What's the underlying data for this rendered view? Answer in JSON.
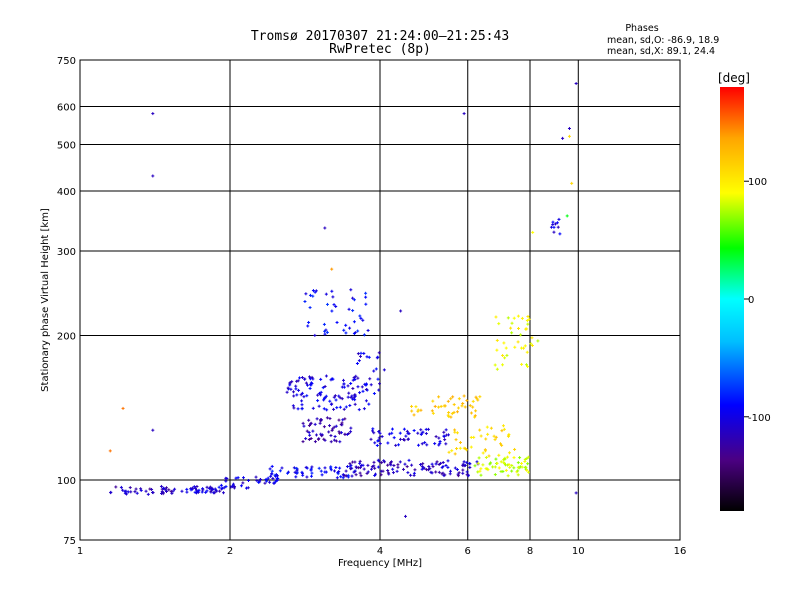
{
  "chart_data": {
    "type": "scatter",
    "title": "Tromsø 20170307 21:24:00–21:25:43",
    "subtitle": "RwPretec (8p)",
    "legend_title": "Phases",
    "stats": [
      "mean, sd,O: -86.9, 18.9",
      "mean, sd,X: 89.1, 24.4"
    ],
    "xlabel": "Frequency [MHz]",
    "ylabel": "Stationary phase Virtual Height [km]",
    "x_scale": "log",
    "y_scale": "log",
    "xlim": [
      1,
      16
    ],
    "ylim": [
      75,
      750
    ],
    "x_ticks": [
      1,
      2,
      4,
      6,
      8,
      10,
      16
    ],
    "y_ticks": [
      75,
      100,
      200,
      300,
      400,
      500,
      600,
      750
    ],
    "grid": true,
    "colorbar": {
      "label": "[deg]",
      "range": [
        -180,
        180
      ],
      "ticks": [
        100,
        0,
        -100
      ],
      "colors": [
        "#000000",
        "#4b0082",
        "#0000ff",
        "#00bfff",
        "#00ffff",
        "#00ff00",
        "#ffff00",
        "#ffa500",
        "#ff0000"
      ]
    },
    "clusters": [
      {
        "x_range": [
          1.15,
          1.55
        ],
        "y_range": [
          93,
          97
        ],
        "phase": -110,
        "n": 40
      },
      {
        "x_range": [
          1.6,
          1.95
        ],
        "y_range": [
          94,
          97
        ],
        "phase": -105,
        "n": 40
      },
      {
        "x_range": [
          1.9,
          2.5
        ],
        "y_range": [
          96,
          102
        ],
        "phase": -100,
        "n": 40
      },
      {
        "x_range": [
          2.4,
          3.6
        ],
        "y_range": [
          101,
          107
        ],
        "phase": -90,
        "n": 60
      },
      {
        "x_range": [
          3.4,
          6.3
        ],
        "y_range": [
          102,
          110
        ],
        "phase": -110,
        "n": 120
      },
      {
        "x_range": [
          6.2,
          8.0
        ],
        "y_range": [
          102,
          112
        ],
        "phase": 80,
        "n": 60
      },
      {
        "x_range": [
          2.6,
          3.8
        ],
        "y_range": [
          140,
          165
        ],
        "phase": -100,
        "n": 110
      },
      {
        "x_range": [
          2.8,
          3.5
        ],
        "y_range": [
          120,
          135
        ],
        "phase": -115,
        "n": 60
      },
      {
        "x_range": [
          3.8,
          5.5
        ],
        "y_range": [
          118,
          128
        ],
        "phase": -100,
        "n": 60
      },
      {
        "x_range": [
          4.6,
          6.5
        ],
        "y_range": [
          135,
          150
        ],
        "phase": 120,
        "n": 45
      },
      {
        "x_range": [
          5.5,
          7.5
        ],
        "y_range": [
          112,
          130
        ],
        "phase": 110,
        "n": 40
      },
      {
        "x_range": [
          6.8,
          8.3
        ],
        "y_range": [
          170,
          220
        ],
        "phase": 90,
        "n": 40
      },
      {
        "x_range": [
          2.8,
          3.8
        ],
        "y_range": [
          200,
          250
        ],
        "phase": -90,
        "n": 45
      },
      {
        "x_range": [
          3.6,
          4.1
        ],
        "y_range": [
          150,
          185
        ],
        "phase": -100,
        "n": 25
      },
      {
        "x_range": [
          8.8,
          9.2
        ],
        "y_range": [
          320,
          350
        ],
        "phase": -100,
        "n": 10
      }
    ],
    "isolated_points": [
      {
        "x": 1.4,
        "y": 580,
        "phase": -110
      },
      {
        "x": 1.4,
        "y": 430,
        "phase": -110
      },
      {
        "x": 1.4,
        "y": 127,
        "phase": -110
      },
      {
        "x": 1.22,
        "y": 141,
        "phase": 150
      },
      {
        "x": 1.15,
        "y": 115,
        "phase": 150
      },
      {
        "x": 5.9,
        "y": 580,
        "phase": -110
      },
      {
        "x": 9.9,
        "y": 670,
        "phase": -110
      },
      {
        "x": 9.6,
        "y": 540,
        "phase": -110
      },
      {
        "x": 9.6,
        "y": 520,
        "phase": 110
      },
      {
        "x": 9.7,
        "y": 415,
        "phase": 110
      },
      {
        "x": 9.5,
        "y": 355,
        "phase": 40
      },
      {
        "x": 9.3,
        "y": 515,
        "phase": -110
      },
      {
        "x": 8.1,
        "y": 328,
        "phase": 90
      },
      {
        "x": 3.1,
        "y": 335,
        "phase": -110
      },
      {
        "x": 3.2,
        "y": 275,
        "phase": 140
      },
      {
        "x": 4.4,
        "y": 225,
        "phase": -110
      },
      {
        "x": 9.9,
        "y": 94,
        "phase": -110
      },
      {
        "x": 4.5,
        "y": 84,
        "phase": -110
      }
    ]
  }
}
